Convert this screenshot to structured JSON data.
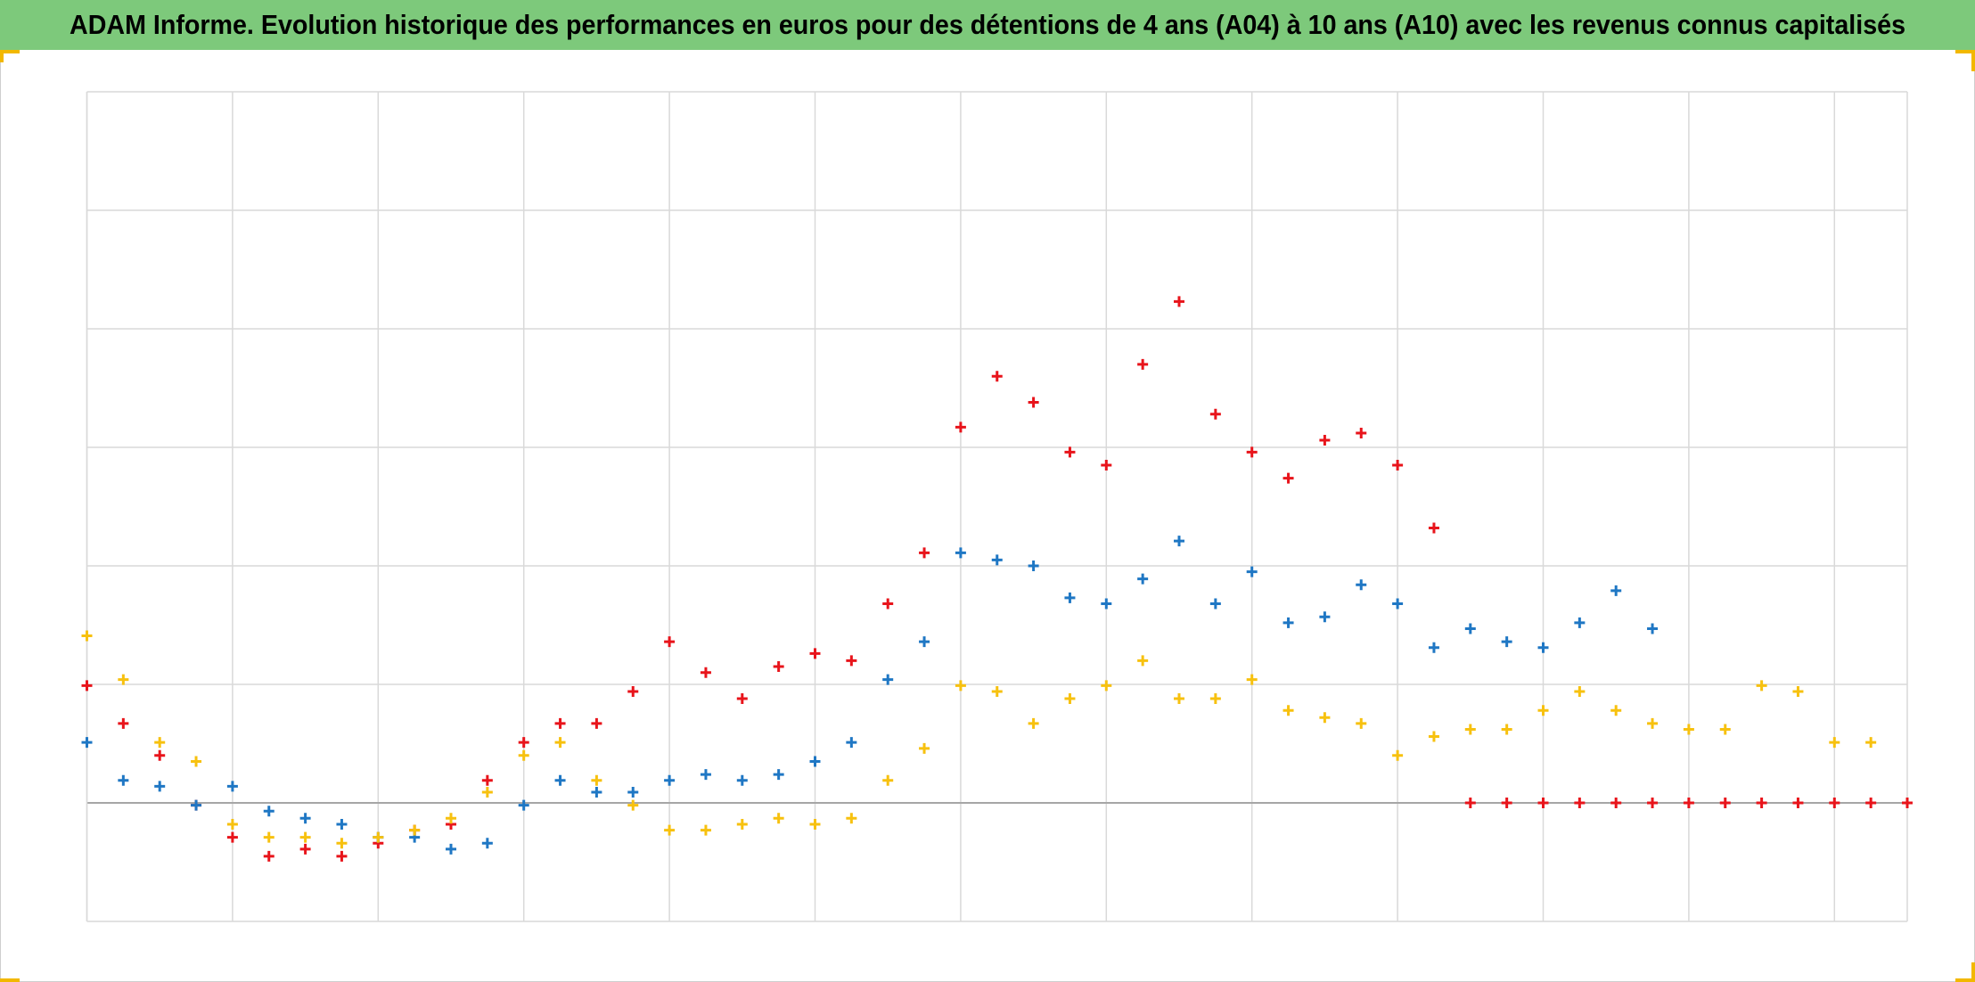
{
  "chart_data": {
    "type": "scatter",
    "title": "ADAM Informe. Evolution historique des performances en euros pour des détentions de 4 ans (A04) à 10 ans (A10) avec les revenus connus capitalisés",
    "xlim": [
      0,
      12.5
    ],
    "xticks": [
      0,
      1,
      2,
      3,
      4,
      5,
      6,
      7,
      8,
      9,
      10,
      11,
      12
    ],
    "ylim": [
      -1,
      6
    ],
    "yticks": [
      -1,
      0,
      1,
      2,
      3,
      4,
      5,
      6
    ],
    "grid": true,
    "series": [
      {
        "color": "#e8141b",
        "x": [
          0,
          0.25,
          0.5,
          0.75,
          1,
          1.25,
          1.5,
          1.75,
          2,
          2.25,
          2.5,
          2.75,
          3,
          3.25,
          3.5,
          3.75,
          4,
          4.25,
          4.5,
          4.75,
          5,
          5.25,
          5.5,
          5.75,
          6,
          6.25,
          6.5,
          6.75,
          7,
          7.25,
          7.5,
          7.75,
          8,
          8.25,
          8.5,
          8.75,
          9,
          9.25,
          9.5,
          9.75,
          10,
          10.25,
          10.5,
          10.75,
          11,
          11.25,
          11.5,
          11.75,
          12,
          12.25,
          12.5
        ],
        "values": [
          0.99,
          0.67,
          0.4,
          -0.02,
          -0.29,
          -0.45,
          -0.39,
          -0.45,
          -0.34,
          -0.23,
          -0.18,
          0.19,
          0.51,
          0.67,
          0.67,
          0.94,
          1.36,
          1.1,
          0.88,
          1.15,
          1.26,
          1.2,
          1.68,
          2.11,
          3.17,
          3.6,
          3.38,
          2.96,
          2.85,
          3.7,
          4.23,
          3.28,
          2.96,
          2.74,
          3.06,
          3.12,
          2.85,
          2.32,
          0,
          0,
          0,
          0,
          0,
          0,
          0,
          0,
          0,
          0,
          0,
          0,
          0
        ]
      },
      {
        "color": "#1f77c4",
        "x": [
          0,
          0.25,
          0.5,
          0.75,
          1,
          1.25,
          1.5,
          1.75,
          2,
          2.25,
          2.5,
          2.75,
          3,
          3.25,
          3.5,
          3.75,
          4,
          4.25,
          4.5,
          4.75,
          5,
          5.25,
          5.5,
          5.75,
          6,
          6.25,
          6.5,
          6.75,
          7,
          7.25,
          7.5,
          7.75,
          8,
          8.25,
          8.5,
          8.75,
          9,
          9.25,
          9.5,
          9.75,
          10,
          10.25,
          10.5,
          10.75
        ],
        "values": [
          0.51,
          0.19,
          0.14,
          -0.02,
          0.14,
          -0.07,
          -0.13,
          -0.18,
          -0.29,
          -0.29,
          -0.39,
          -0.34,
          -0.02,
          0.19,
          0.09,
          0.09,
          0.19,
          0.24,
          0.19,
          0.24,
          0.35,
          0.51,
          1.04,
          1.36,
          2.11,
          2.05,
          2.0,
          1.73,
          1.68,
          1.89,
          2.21,
          1.68,
          1.95,
          1.52,
          1.57,
          1.84,
          1.68,
          1.31,
          1.47,
          1.36,
          1.31,
          1.52,
          1.79,
          1.47
        ]
      },
      {
        "color": "#f7c10f",
        "x": [
          0,
          0.25,
          0.5,
          0.75,
          1,
          1.25,
          1.5,
          1.75,
          2,
          2.25,
          2.5,
          2.75,
          3,
          3.25,
          3.5,
          3.75,
          4,
          4.25,
          4.5,
          4.75,
          5,
          5.25,
          5.5,
          5.75,
          6,
          6.25,
          6.5,
          6.75,
          7,
          7.25,
          7.5,
          7.75,
          8,
          8.25,
          8.5,
          8.75,
          9,
          9.25,
          9.5,
          9.75,
          10,
          10.25,
          10.5,
          10.75,
          11,
          11.25,
          11.5,
          11.75,
          12,
          12.25
        ],
        "values": [
          1.41,
          1.04,
          0.51,
          0.35,
          -0.18,
          -0.29,
          -0.29,
          -0.34,
          -0.29,
          -0.23,
          -0.13,
          0.09,
          0.4,
          0.51,
          0.19,
          -0.02,
          -0.23,
          -0.23,
          -0.18,
          -0.13,
          -0.18,
          -0.13,
          0.19,
          0.46,
          0.99,
          0.94,
          0.67,
          0.88,
          0.99,
          1.2,
          0.88,
          0.88,
          1.04,
          0.78,
          0.72,
          0.67,
          0.4,
          0.56,
          0.62,
          0.62,
          0.78,
          0.94,
          0.78,
          0.67,
          0.62,
          0.62,
          0.99,
          0.94,
          0.51,
          0.51
        ]
      }
    ]
  }
}
